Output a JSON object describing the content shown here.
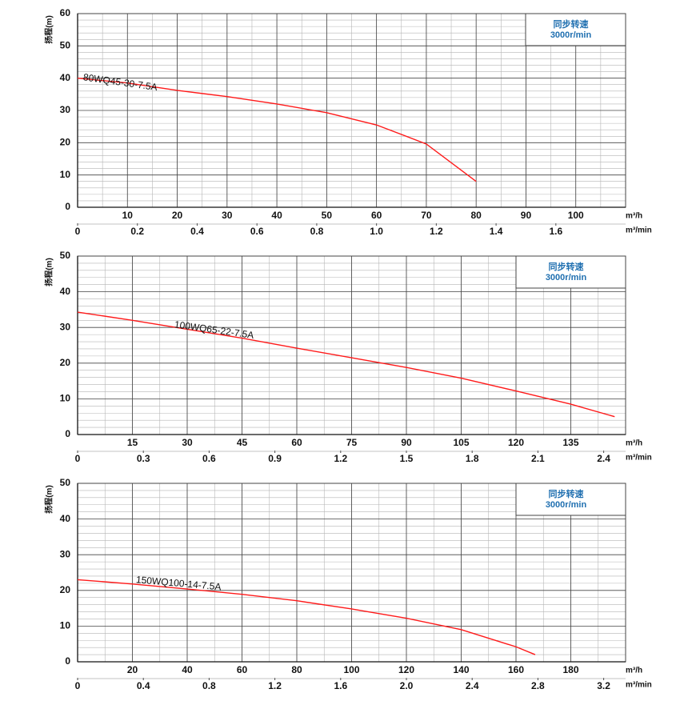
{
  "chart_data": [
    {
      "type": "line",
      "y_label": "扬程(m)",
      "x_label": "m³/h",
      "x2_label": "m³/min",
      "speed_title": "同步转速",
      "speed": "3000r/min",
      "x": [
        0,
        10,
        20,
        30,
        40,
        50,
        60,
        70,
        80
      ],
      "series": [
        {
          "name": "80WQ45-30-7.5A",
          "color": "#ff1a1a",
          "values": [
            40,
            38.5,
            36.2,
            34.3,
            32,
            29.3,
            25.5,
            19.6,
            8
          ]
        }
      ],
      "xlim": [
        0,
        110
      ],
      "xticks": [
        10,
        20,
        30,
        40,
        50,
        60,
        70,
        80,
        90,
        100
      ],
      "x2lim": [
        0,
        1.8333
      ],
      "x2ticks": [
        0,
        0.2,
        0.4,
        0.6,
        0.8,
        {
          "value": 1,
          "label": "1.0"
        },
        1.2,
        1.4,
        1.6
      ],
      "ylim": [
        0,
        60
      ],
      "yticks": [
        0,
        10,
        20,
        30,
        40,
        50,
        60
      ],
      "grid": true
    },
    {
      "type": "line",
      "y_label": "扬程(m)",
      "x_label": "m³/h",
      "x2_label": "m³/min",
      "speed_title": "同步转速",
      "speed": "3000r/min",
      "x": [
        0,
        15,
        30,
        45,
        60,
        75,
        90,
        105,
        120,
        135,
        147
      ],
      "series": [
        {
          "name": "100WQ65-22-7.5A",
          "color": "#ff1a1a",
          "values": [
            34.3,
            32,
            29.5,
            27,
            24.2,
            21.5,
            18.8,
            15.8,
            12.2,
            8.5,
            5
          ]
        }
      ],
      "xlim": [
        0,
        150
      ],
      "xticks": [
        15,
        30,
        45,
        60,
        75,
        90,
        105,
        120,
        135
      ],
      "x2lim": [
        0,
        2.5
      ],
      "x2ticks": [
        0,
        0.3,
        0.6,
        0.9,
        1.2,
        1.5,
        1.8,
        2.1,
        2.4
      ],
      "ylim": [
        0,
        50
      ],
      "yticks": [
        0,
        10,
        20,
        30,
        40,
        50
      ],
      "grid": true
    },
    {
      "type": "line",
      "y_label": "扬程(m)",
      "x_label": "m³/h",
      "x2_label": "m³/min",
      "speed_title": "同步转速",
      "speed": "3000r/min",
      "x": [
        0,
        20,
        40,
        60,
        80,
        100,
        120,
        140,
        160,
        167
      ],
      "series": [
        {
          "name": "150WQ100-14-7.5A",
          "color": "#ff1a1a",
          "values": [
            23,
            21.8,
            20.4,
            18.9,
            17.1,
            14.8,
            12.2,
            9,
            4.2,
            2
          ]
        }
      ],
      "xlim": [
        0,
        200
      ],
      "xticks": [
        20,
        40,
        60,
        80,
        100,
        120,
        140,
        160,
        180
      ],
      "x2lim": [
        0,
        3.3333
      ],
      "x2ticks": [
        0,
        0.4,
        0.8,
        1.2,
        1.6,
        {
          "value": 2,
          "label": "2.0"
        },
        2.4,
        2.8,
        3.2
      ],
      "ylim": [
        0,
        50
      ],
      "yticks": [
        0,
        10,
        20,
        30,
        40,
        50
      ],
      "grid": true
    }
  ]
}
